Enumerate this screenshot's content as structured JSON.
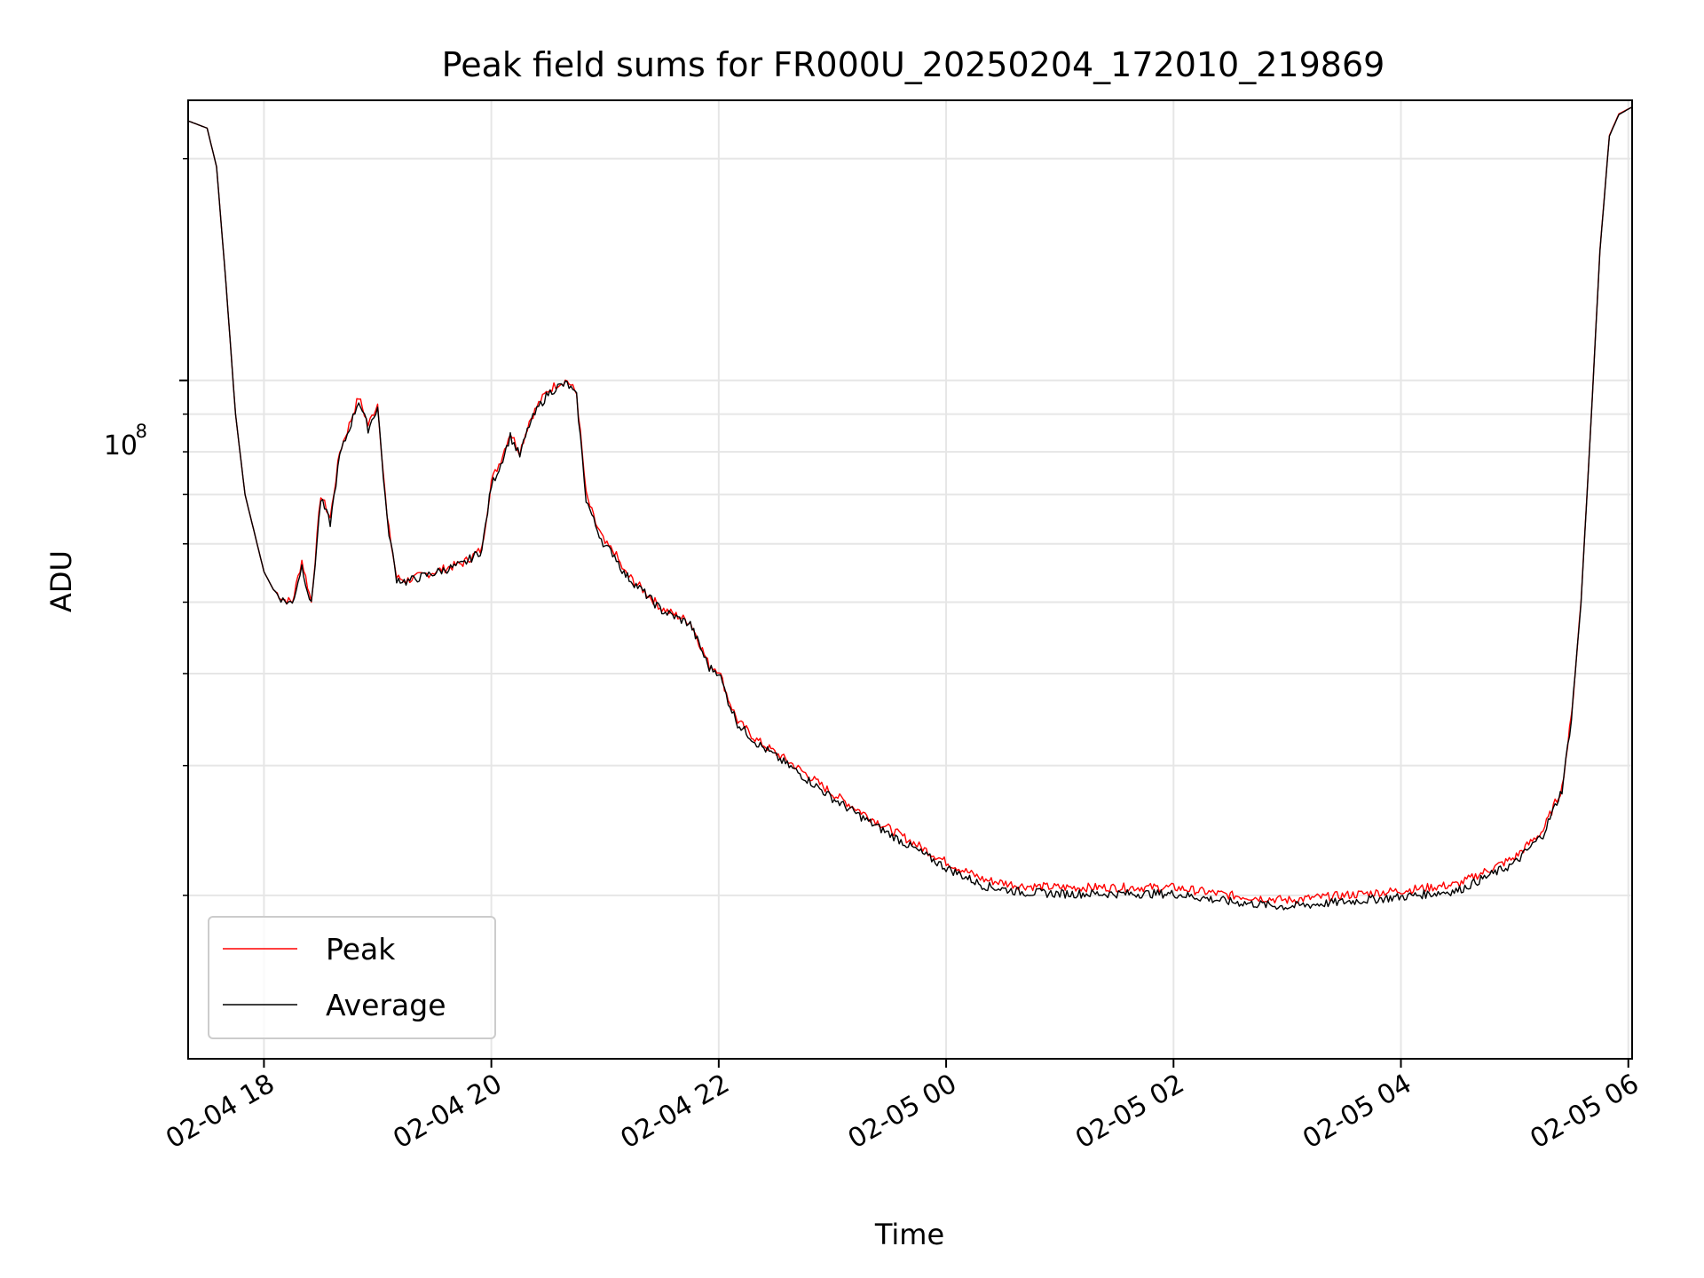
{
  "chart_data": {
    "type": "line",
    "title": "Peak field sums for FR000U_20250204_172010_219869",
    "xlabel": "Time",
    "ylabel": "ADU",
    "x_scale": "time",
    "y_scale": "log",
    "xlim": [
      "2025-02-04 17:20",
      "2025-02-05 06:02"
    ],
    "ylim": [
      12000000,
      240000000
    ],
    "x_tick_labels": [
      "02-04 18",
      "02-04 20",
      "02-04 22",
      "02-05 00",
      "02-05 02",
      "02-05 04",
      "02-05 06"
    ],
    "y_tick_labels": [
      "10",
      "8"
    ],
    "grid": true,
    "legend": {
      "placement": "lower-left",
      "entries": [
        "Peak",
        "Average"
      ]
    },
    "series": [
      {
        "name": "Peak",
        "color": "#ff0000",
        "x": [
          "2025-02-04 17:20",
          "2025-02-04 17:30",
          "2025-02-04 17:35",
          "2025-02-04 17:40",
          "2025-02-04 17:45",
          "2025-02-04 17:50",
          "2025-02-04 18:00",
          "2025-02-04 18:05",
          "2025-02-04 18:10",
          "2025-02-04 18:15",
          "2025-02-04 18:20",
          "2025-02-04 18:25",
          "2025-02-04 18:30",
          "2025-02-04 18:35",
          "2025-02-04 18:40",
          "2025-02-04 18:45",
          "2025-02-04 18:50",
          "2025-02-04 18:55",
          "2025-02-04 19:00",
          "2025-02-04 19:05",
          "2025-02-04 19:10",
          "2025-02-04 19:15",
          "2025-02-04 19:20",
          "2025-02-04 19:25",
          "2025-02-04 19:30",
          "2025-02-04 19:45",
          "2025-02-04 19:55",
          "2025-02-04 20:00",
          "2025-02-04 20:05",
          "2025-02-04 20:10",
          "2025-02-04 20:15",
          "2025-02-04 20:20",
          "2025-02-04 20:25",
          "2025-02-04 20:30",
          "2025-02-04 20:35",
          "2025-02-04 20:40",
          "2025-02-04 20:45",
          "2025-02-04 20:50",
          "2025-02-04 20:55",
          "2025-02-04 21:00",
          "2025-02-04 21:05",
          "2025-02-04 21:10",
          "2025-02-04 21:20",
          "2025-02-04 21:30",
          "2025-02-04 21:45",
          "2025-02-04 21:55",
          "2025-02-04 22:00",
          "2025-02-04 22:05",
          "2025-02-04 22:10",
          "2025-02-04 22:20",
          "2025-02-04 22:40",
          "2025-02-04 23:00",
          "2025-02-04 23:20",
          "2025-02-04 23:40",
          "2025-02-05 00:00",
          "2025-02-05 00:20",
          "2025-02-05 00:40",
          "2025-02-05 01:00",
          "2025-02-05 01:30",
          "2025-02-05 02:00",
          "2025-02-05 02:30",
          "2025-02-05 03:00",
          "2025-02-05 03:30",
          "2025-02-05 04:00",
          "2025-02-05 04:30",
          "2025-02-05 05:00",
          "2025-02-05 05:15",
          "2025-02-05 05:25",
          "2025-02-05 05:30",
          "2025-02-05 05:35",
          "2025-02-05 05:40",
          "2025-02-05 05:45",
          "2025-02-05 05:50",
          "2025-02-05 05:55",
          "2025-02-05 06:02"
        ],
        "values": [
          225000000,
          220000000,
          195000000,
          135000000,
          90000000,
          70000000,
          55000000,
          52000000,
          50500000,
          50000000,
          57000000,
          50000000,
          70000000,
          65000000,
          80000000,
          87000000,
          95000000,
          87000000,
          93000000,
          65000000,
          54000000,
          53500000,
          54000000,
          54500000,
          55000000,
          56500000,
          59000000,
          73000000,
          78000000,
          85000000,
          80000000,
          88000000,
          93000000,
          97000000,
          99000000,
          100000000,
          96000000,
          70000000,
          64000000,
          60000000,
          58500000,
          55000000,
          52000000,
          49000000,
          47000000,
          41000000,
          40500000,
          37000000,
          34500000,
          32500000,
          30000000,
          27500000,
          25500000,
          23800000,
          22200000,
          21000000,
          20600000,
          20500000,
          20500000,
          20500000,
          20000000,
          19700000,
          20000000,
          20300000,
          20700000,
          22500000,
          24500000,
          28000000,
          35000000,
          50000000,
          85000000,
          150000000,
          215000000,
          230000000,
          235000000
        ]
      },
      {
        "name": "Average",
        "color": "#000000",
        "x": [
          "2025-02-04 17:20",
          "2025-02-04 17:30",
          "2025-02-04 17:35",
          "2025-02-04 17:40",
          "2025-02-04 17:45",
          "2025-02-04 17:50",
          "2025-02-04 18:00",
          "2025-02-04 18:05",
          "2025-02-04 18:10",
          "2025-02-04 18:15",
          "2025-02-04 18:20",
          "2025-02-04 18:25",
          "2025-02-04 18:30",
          "2025-02-04 18:35",
          "2025-02-04 18:40",
          "2025-02-04 18:45",
          "2025-02-04 18:50",
          "2025-02-04 18:55",
          "2025-02-04 19:00",
          "2025-02-04 19:05",
          "2025-02-04 19:10",
          "2025-02-04 19:15",
          "2025-02-04 19:20",
          "2025-02-04 19:25",
          "2025-02-04 19:30",
          "2025-02-04 19:45",
          "2025-02-04 19:55",
          "2025-02-04 20:00",
          "2025-02-04 20:05",
          "2025-02-04 20:10",
          "2025-02-04 20:15",
          "2025-02-04 20:20",
          "2025-02-04 20:25",
          "2025-02-04 20:30",
          "2025-02-04 20:35",
          "2025-02-04 20:40",
          "2025-02-04 20:45",
          "2025-02-04 20:50",
          "2025-02-04 20:55",
          "2025-02-04 21:00",
          "2025-02-04 21:05",
          "2025-02-04 21:10",
          "2025-02-04 21:20",
          "2025-02-04 21:30",
          "2025-02-04 21:45",
          "2025-02-04 21:55",
          "2025-02-04 22:00",
          "2025-02-04 22:05",
          "2025-02-04 22:10",
          "2025-02-04 22:20",
          "2025-02-04 22:40",
          "2025-02-04 23:00",
          "2025-02-04 23:20",
          "2025-02-04 23:40",
          "2025-02-05 00:00",
          "2025-02-05 00:20",
          "2025-02-05 00:40",
          "2025-02-05 01:00",
          "2025-02-05 01:30",
          "2025-02-05 02:00",
          "2025-02-05 02:30",
          "2025-02-05 03:00",
          "2025-02-05 03:30",
          "2025-02-05 04:00",
          "2025-02-05 04:30",
          "2025-02-05 05:00",
          "2025-02-05 05:15",
          "2025-02-05 05:25",
          "2025-02-05 05:30",
          "2025-02-05 05:35",
          "2025-02-05 05:40",
          "2025-02-05 05:45",
          "2025-02-05 05:50",
          "2025-02-05 05:55",
          "2025-02-05 06:02"
        ],
        "values": [
          225000000,
          220000000,
          195000000,
          135000000,
          90000000,
          70000000,
          55000000,
          52000000,
          50300000,
          49800000,
          56000000,
          49500000,
          69000000,
          64000000,
          79000000,
          86000000,
          94000000,
          86000000,
          92000000,
          64500000,
          53800000,
          53300000,
          53800000,
          54300000,
          54800000,
          56300000,
          58800000,
          72000000,
          77000000,
          84000000,
          79000000,
          87000000,
          92000000,
          96000000,
          98000000,
          99000000,
          95000000,
          69000000,
          63500000,
          59500000,
          58000000,
          54700000,
          51700000,
          48700000,
          46700000,
          40700000,
          40200000,
          36700000,
          34200000,
          32200000,
          29600000,
          27100000,
          25100000,
          23400000,
          21800000,
          20600000,
          20200000,
          20100000,
          20100000,
          20100000,
          19600000,
          19300000,
          19600000,
          19900000,
          20300000,
          22100000,
          24200000,
          27800000,
          34800000,
          49800000,
          84800000,
          149500000,
          214500000,
          229500000,
          235000000
        ]
      }
    ]
  }
}
